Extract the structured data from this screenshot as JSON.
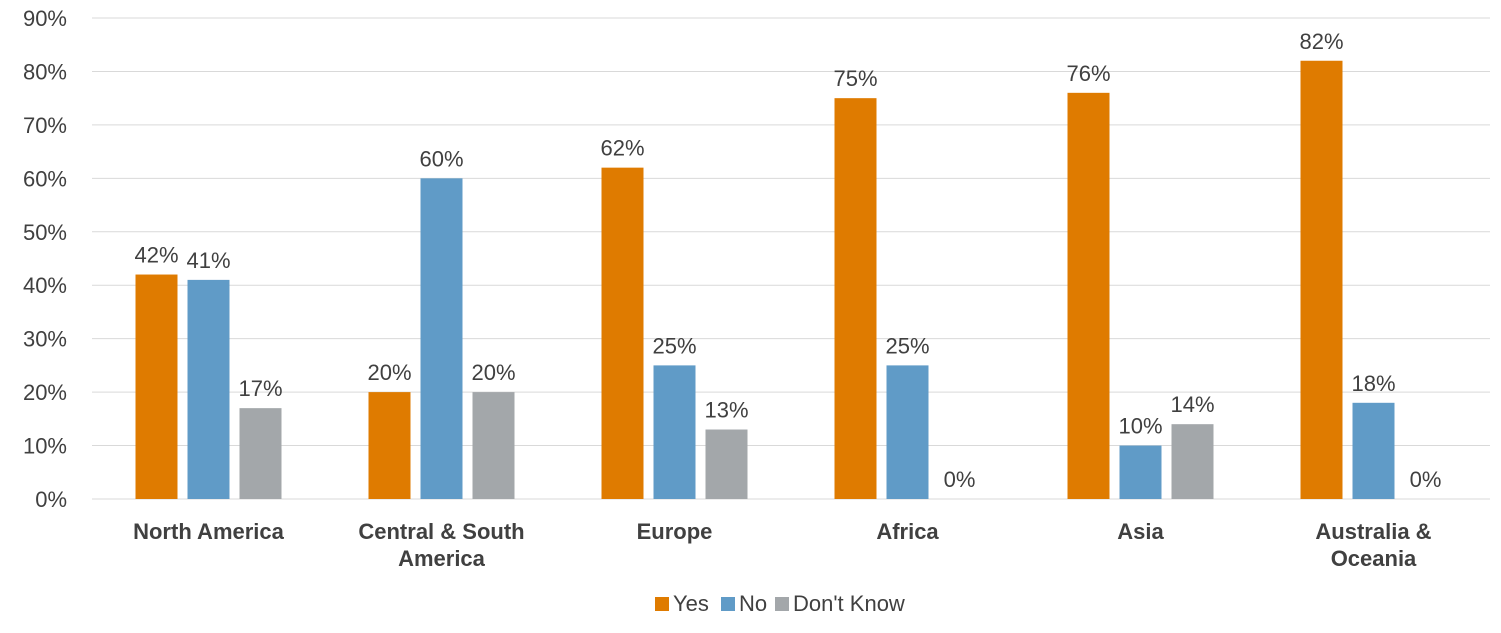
{
  "chart_data": {
    "type": "bar",
    "categories": [
      [
        "North America"
      ],
      [
        "Central & South",
        "America"
      ],
      [
        "Europe"
      ],
      [
        "Africa"
      ],
      [
        "Asia"
      ],
      [
        "Australia &",
        "Oceania"
      ]
    ],
    "series": [
      {
        "name": "Yes",
        "color": "#df7b00",
        "values": [
          42,
          20,
          62,
          75,
          76,
          82
        ]
      },
      {
        "name": "No",
        "color": "#609bc7",
        "values": [
          41,
          60,
          25,
          25,
          10,
          18
        ]
      },
      {
        "name": "Don't Know",
        "color": "#a3a7aa",
        "values": [
          17,
          20,
          13,
          0,
          14,
          0
        ]
      }
    ],
    "data_labels": [
      [
        "42%",
        "20%",
        "62%",
        "75%",
        "76%",
        "82%"
      ],
      [
        "41%",
        "60%",
        "25%",
        "25%",
        "10%",
        "18%"
      ],
      [
        "17%",
        "20%",
        "13%",
        "0%",
        "14%",
        "0%"
      ]
    ],
    "y_ticks": [
      "0%",
      "10%",
      "20%",
      "30%",
      "40%",
      "50%",
      "60%",
      "70%",
      "80%",
      "90%"
    ],
    "ylim": [
      0,
      90
    ],
    "y_step": 10,
    "grid": true,
    "legend_position": "bottom-center",
    "title": "",
    "xlabel": "",
    "ylabel": ""
  }
}
